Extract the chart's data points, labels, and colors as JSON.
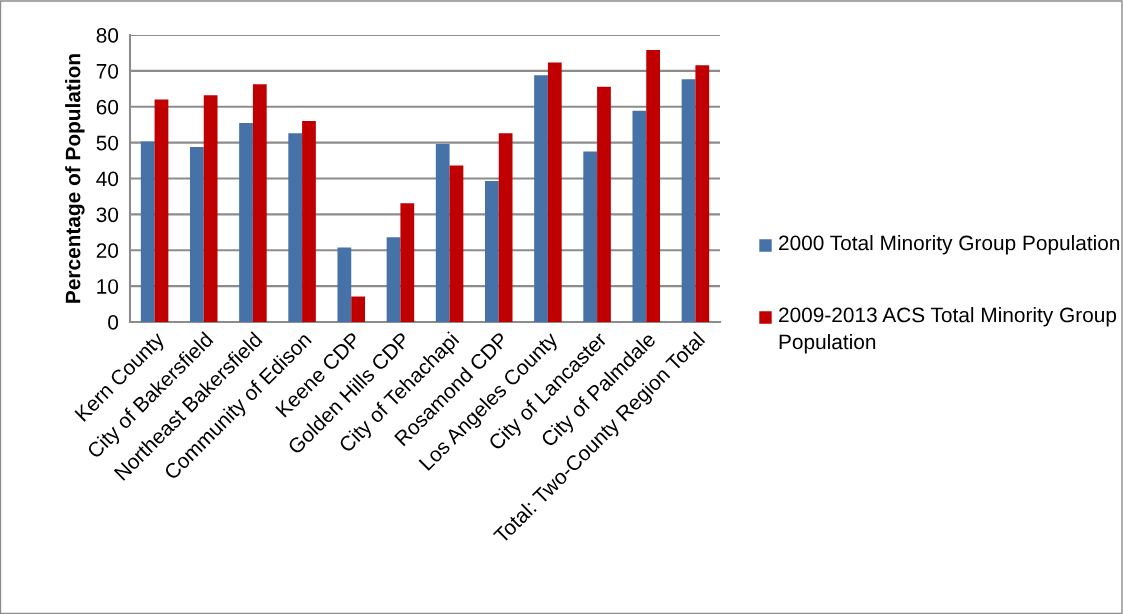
{
  "chart_data": {
    "type": "bar",
    "ylabel": "Percentage of Population",
    "categories": [
      "Kern County",
      "City of Bakersfield",
      "Northeast Bakersfield",
      "Community of Edison",
      "Keene CDP",
      "Golden Hills CDP",
      "City of Tehachapi",
      "Rosamond CDP",
      "Los Angeles County",
      "City of Lancaster",
      "City of Palmdale",
      "Total: Two-County Region Total"
    ],
    "series": [
      {
        "name": "2000 Total Minority Group Population",
        "color": "#4672a8",
        "values": [
          50.3,
          48.8,
          55.5,
          52.6,
          20.8,
          23.6,
          49.6,
          39.3,
          68.8,
          47.5,
          58.9,
          67.7
        ]
      },
      {
        "name": "2009-2013 ACS Total Minority Group Population",
        "color": "#c00000",
        "values": [
          62.0,
          63.2,
          66.3,
          56.0,
          7.1,
          33.1,
          43.6,
          52.6,
          72.3,
          65.6,
          75.8,
          71.6
        ]
      }
    ],
    "ylim": [
      0,
      80
    ],
    "yticks": [
      0,
      10,
      20,
      30,
      40,
      50,
      60,
      70,
      80
    ],
    "grid": "y",
    "legend": "right"
  }
}
